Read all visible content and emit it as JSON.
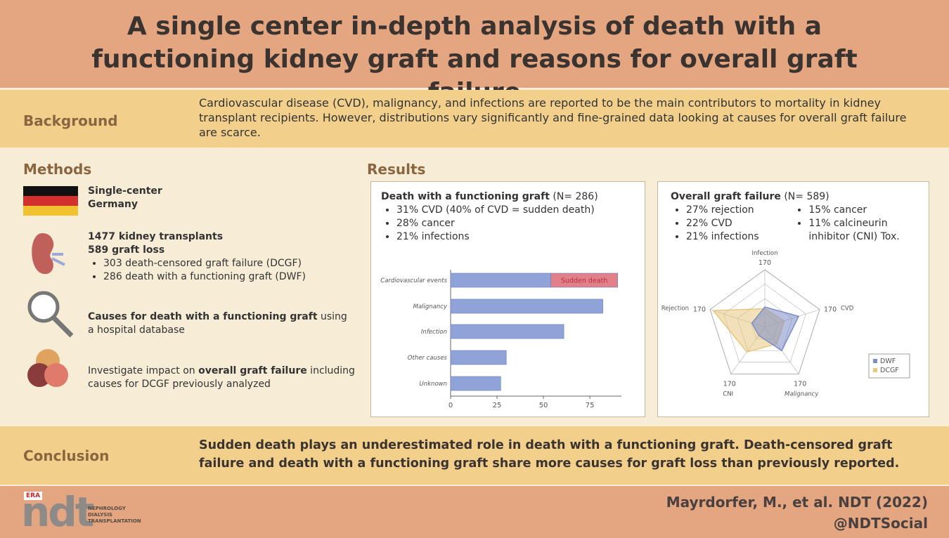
{
  "header": {
    "title": "A single center in-depth analysis of death with a functioning kidney graft and reasons for overall graft failure"
  },
  "background": {
    "label": "Background",
    "text": "Cardiovascular disease (CVD), malignancy, and infections are reported to be the main contributors to mortality in kidney transplant recipients. However, distributions vary significantly and fine-grained data looking at causes for overall graft failure are scarce."
  },
  "methods": {
    "label": "Methods",
    "items": [
      {
        "heading": [
          "Single-center",
          "Germany"
        ]
      },
      {
        "heading": [
          "1477 kidney transplants",
          "589 graft loss"
        ],
        "bullets": [
          "303 death-censored graft failure (DCGF)",
          "286 death with a functioning graft (DWF)"
        ]
      },
      {
        "runs": [
          {
            "text": "Causes for death with a functioning graft",
            "bold": true
          },
          {
            "text": " using a hospital database",
            "bold": false
          }
        ]
      },
      {
        "runs": [
          {
            "text": "Investigate impact on ",
            "bold": false
          },
          {
            "text": "overall graft failure",
            "bold": true
          },
          {
            "text": " including causes for DCGF previously analyzed",
            "bold": false
          }
        ]
      }
    ]
  },
  "results": {
    "label": "Results",
    "dwf": {
      "title": "Death with a functioning graft",
      "n": "(N= 286)",
      "bullets": [
        [
          "31% CVD (40% of CVD = sudden death)",
          "28% cancer",
          "21% infections"
        ]
      ]
    },
    "ogf": {
      "title": "Overall graft failure",
      "n": "(N= 589)",
      "bullets": [
        [
          "27% rejection",
          "22% CVD",
          "21% infections"
        ],
        [
          "15% cancer",
          "11% calcineurin inhibitor (CNI) Tox."
        ]
      ]
    }
  },
  "conclusion": {
    "label": "Conclusion",
    "text": "Sudden death plays an underestimated role in death with a functioning graft. Death-censored graft failure and death with a functioning graft share more causes for graft loss than previously reported."
  },
  "footer": {
    "logo": {
      "tag": "ERA",
      "mark": "ndt",
      "lines": [
        "NEPHROLOGY",
        "DIALYSIS",
        "TRANSPLANTATION"
      ]
    },
    "citation": "Mayrdorfer, M., et al. NDT (2022)",
    "handle": "@NDTSocial"
  },
  "chart_data": [
    {
      "type": "bar",
      "orientation": "horizontal",
      "categories": [
        "Cardiovascular events",
        "Malignancy",
        "Infection",
        "Other causes",
        "Unknown"
      ],
      "series": [
        {
          "color": "#8fa3d8",
          "values": [
            54,
            82,
            61,
            30,
            27
          ]
        },
        {
          "name": "Sudden death",
          "color": "#e2808a",
          "values": [
            36,
            null,
            null,
            null,
            null
          ]
        }
      ],
      "xlim": [
        0,
        92
      ],
      "xticks": [
        0,
        25,
        50,
        75
      ]
    },
    {
      "type": "radar",
      "axes": [
        "Infection",
        "CVD",
        "Malignancy",
        "CNI",
        "Rejection"
      ],
      "rlim": [
        0,
        170
      ],
      "rticks": [
        170
      ],
      "series": [
        {
          "name": "DWF",
          "color": "#7b8cc6",
          "values": [
            60,
            105,
            85,
            30,
            40
          ]
        },
        {
          "name": "DCGF",
          "color": "#e8c77f",
          "values": [
            55,
            60,
            60,
            90,
            160
          ]
        }
      ],
      "legend": "lower right"
    }
  ]
}
